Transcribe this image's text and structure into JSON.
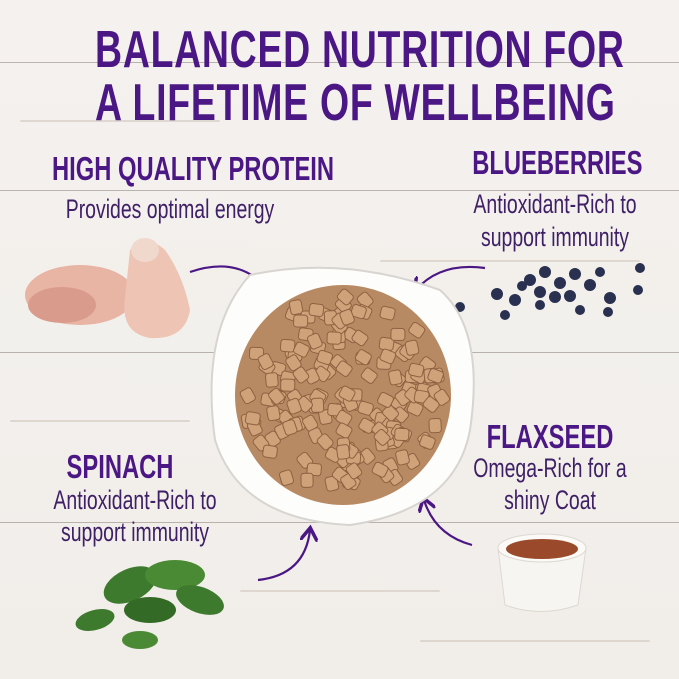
{
  "title": {
    "line1": "BALANCED NUTRITION FOR",
    "line2": "A LIFETIME OF WELLBEING"
  },
  "colors": {
    "heading": "#4b1784",
    "text": "#3f2066",
    "arrow": "#4b1784"
  },
  "callouts": {
    "protein": {
      "heading": "HIGH QUALITY PROTEIN",
      "text": "Provides optimal energy",
      "image": "chicken-drumsticks"
    },
    "blueberries": {
      "heading": "BLUEBERRIES",
      "line1": "Antioxidant-Rich to",
      "line2": "support immunity",
      "image": "blueberries"
    },
    "flaxseed": {
      "heading": "FLAXSEED",
      "line1": "Omega-Rich for a",
      "line2": "shiny Coat",
      "image": "flaxseed-ramekin"
    },
    "spinach": {
      "heading": "SPINACH",
      "line1": "Antioxidant-Rich to",
      "line2": "support immunity",
      "image": "spinach-leaves"
    }
  },
  "center_image": "bowl-of-kibble"
}
